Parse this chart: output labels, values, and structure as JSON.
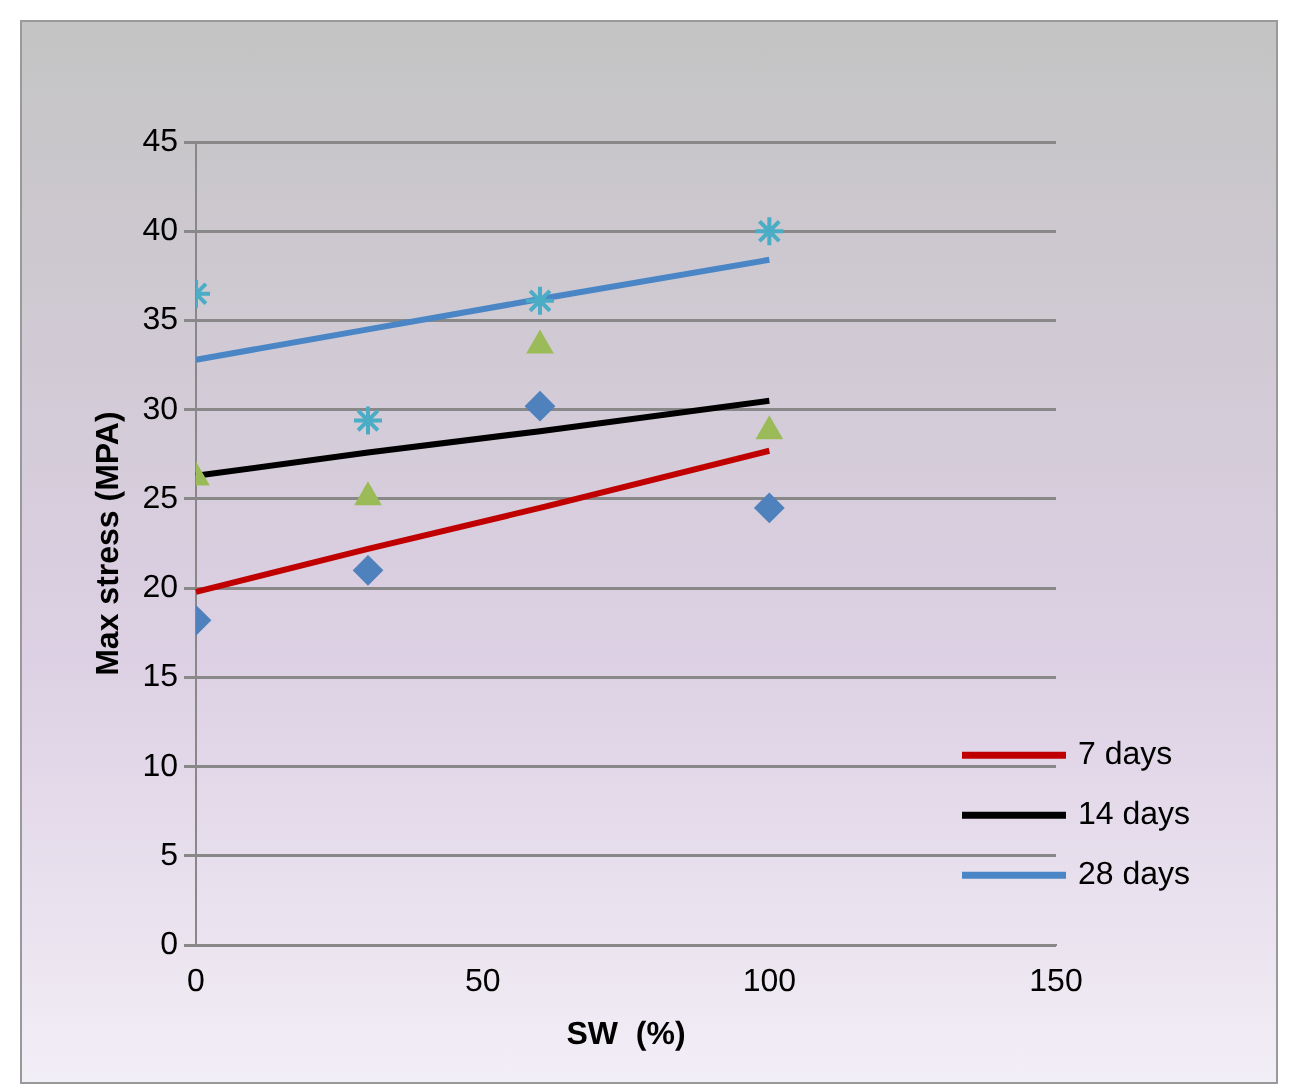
{
  "chart_data": {
    "type": "scatter",
    "xlabel": "SW  (%)",
    "ylabel": "Max stress (MPA)",
    "xlim": [
      0,
      150
    ],
    "xticks": [
      0,
      50,
      100,
      150
    ],
    "ylim": [
      0,
      45
    ],
    "yticks": [
      0,
      5,
      10,
      15,
      20,
      25,
      30,
      35,
      40,
      45
    ],
    "grid": "y",
    "legend": "bottom right",
    "x": [
      0,
      30,
      60,
      100
    ],
    "series": [
      {
        "color": "#4f81bd",
        "marker": "diamond",
        "values": [
          18.2,
          21.0,
          30.2,
          24.5
        ]
      },
      {
        "color": "#9bbb59",
        "marker": "triangle",
        "values": [
          26.2,
          25.1,
          33.6,
          28.8
        ]
      },
      {
        "color": "#4bacc6",
        "marker": "cross",
        "values": [
          36.5,
          29.4,
          36.1,
          40.0
        ]
      },
      {
        "name": "7 days",
        "type": "line",
        "marker": "none",
        "color": "#c00000",
        "values": [
          19.8,
          22.2,
          24.5,
          27.7
        ]
      },
      {
        "name": "14 days",
        "type": "line",
        "marker": "none",
        "color": "#000000",
        "values": [
          26.3,
          27.6,
          28.8,
          30.5
        ]
      },
      {
        "name": "28 days",
        "type": "line",
        "marker": "none",
        "color": "#4a86c5",
        "values": [
          32.8,
          34.5,
          36.2,
          38.4
        ]
      }
    ]
  }
}
